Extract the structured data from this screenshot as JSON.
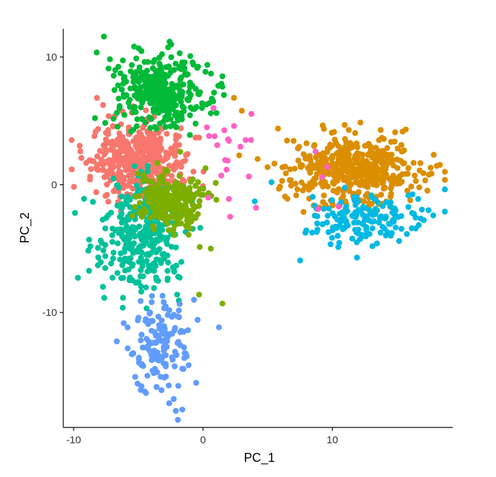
{
  "chart_data": {
    "type": "scatter",
    "title": "",
    "xlabel": "PC_1",
    "ylabel": "PC_2",
    "xlim": [
      -10.8,
      19.3
    ],
    "ylim": [
      -19.0,
      12.2
    ],
    "xticks": [
      -10,
      0,
      10
    ],
    "xtick_labels": [
      "-10",
      "0",
      "10"
    ],
    "yticks": [
      -10,
      0,
      10
    ],
    "ytick_labels": [
      "-10",
      "0",
      "10"
    ],
    "grid": false,
    "legend": "none",
    "clusters": [
      {
        "color": "#F8766D",
        "center": [
          -5.0,
          1.8
        ],
        "spread": [
          1.7,
          1.4
        ],
        "count": 460,
        "extra_points": [
          [
            -8.2,
            6.8
          ],
          [
            -9.4,
            2.1
          ],
          [
            -4.2,
            5.2
          ]
        ]
      },
      {
        "color": "#00BA38",
        "center": [
          -3.2,
          7.4
        ],
        "spread": [
          1.9,
          1.4
        ],
        "count": 380,
        "extra_points": [
          [
            -7.3,
            9.1
          ],
          [
            -1.8,
            10.3
          ],
          [
            0.6,
            5.6
          ]
        ]
      },
      {
        "color": "#00C19A",
        "center": [
          -4.7,
          -4.0
        ],
        "spread": [
          1.5,
          2.1
        ],
        "count": 330,
        "extra_points": [
          [
            -9.2,
            -1.1
          ],
          [
            -8.8,
            -4.3
          ],
          [
            -2.0,
            -8.6
          ]
        ]
      },
      {
        "color": "#7CAE00",
        "center": [
          -2.6,
          -1.2
        ],
        "spread": [
          1.2,
          1.1
        ],
        "count": 260,
        "extra_points": [
          [
            -0.3,
            -8.6
          ],
          [
            1.5,
            -9.3
          ],
          [
            0.6,
            -5.0
          ],
          [
            0.2,
            1.3
          ]
        ]
      },
      {
        "color": "#619CFF",
        "center": [
          -3.2,
          -12.4
        ],
        "spread": [
          1.3,
          1.8
        ],
        "count": 150,
        "extra_points": [
          [
            -1.6,
            -17.6
          ],
          [
            -2.1,
            -17.7
          ],
          [
            -4.4,
            -16.3
          ]
        ]
      },
      {
        "color": "#DB8E00",
        "center": [
          11.5,
          1.3
        ],
        "spread": [
          2.6,
          1.4
        ],
        "count": 430,
        "extra_points": [
          [
            2.4,
            6.8
          ],
          [
            3.0,
            5.8
          ],
          [
            2.8,
            2.3
          ],
          [
            5.8,
            4.4
          ]
        ]
      },
      {
        "color": "#00B9E3",
        "center": [
          12.5,
          -2.6
        ],
        "spread": [
          2.2,
          1.1
        ],
        "count": 160,
        "extra_points": [
          [
            4.0,
            -1.3
          ],
          [
            5.3,
            0.2
          ],
          [
            11.9,
            -5.7
          ],
          [
            17.8,
            -2.4
          ]
        ]
      },
      {
        "color": "#FF61C3",
        "center": [
          2.0,
          3.5
        ],
        "spread": [
          1.0,
          1.6
        ],
        "count": 14,
        "extra_points": [
          [
            0.3,
            4.5
          ],
          [
            0.9,
            3.8
          ],
          [
            2.4,
            4.6
          ],
          [
            3.3,
            3.5
          ],
          [
            4.1,
            -1.8
          ],
          [
            1.1,
            3.1
          ],
          [
            0.4,
            -1.0
          ],
          [
            2.1,
            -2.5
          ],
          [
            9.2,
            0.6
          ],
          [
            8.7,
            2.6
          ],
          [
            10.5,
            -1.7
          ],
          [
            8.9,
            -1.9
          ],
          [
            9.6,
            1.4
          ]
        ]
      }
    ]
  }
}
